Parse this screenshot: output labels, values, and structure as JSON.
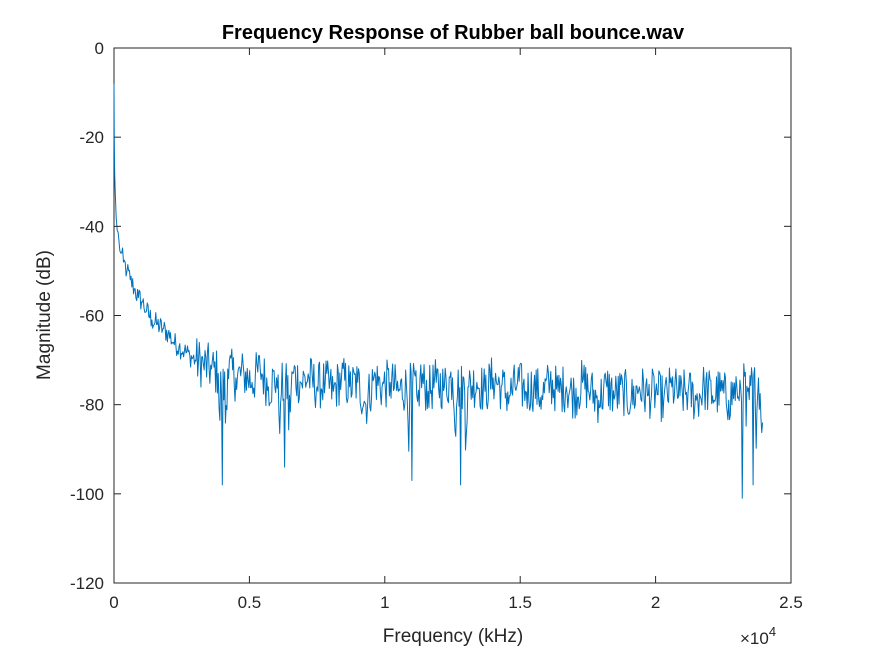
{
  "chart_data": {
    "type": "line",
    "title": "Frequency Response of Rubber ball bounce.wav",
    "xlabel": "Frequency (kHz)",
    "ylabel": "Magnitude (dB)",
    "xlim": [
      0,
      25000
    ],
    "ylim": [
      -120,
      0
    ],
    "x_ticks": [
      0,
      5000,
      10000,
      15000,
      20000,
      25000
    ],
    "x_tick_labels": [
      "0",
      "0.5",
      "1",
      "1.5",
      "2",
      "2.5"
    ],
    "x_exponent_label": "×10",
    "x_exponent_power": "4",
    "y_ticks": [
      0,
      -20,
      -40,
      -60,
      -80,
      -100,
      -120
    ],
    "y_tick_labels": [
      "0",
      "-20",
      "-40",
      "-60",
      "-80",
      "-100",
      "-120"
    ],
    "grid": false,
    "series_color": "#0072BD",
    "series": [
      {
        "x": [
          0,
          10,
          25,
          50,
          80,
          120,
          180,
          250,
          350,
          480,
          600,
          750,
          900,
          1050,
          1200,
          1400,
          1600,
          1800,
          2000,
          2200,
          2400,
          2600,
          2800,
          3000,
          3300,
          3600,
          3850,
          4000,
          4200,
          4500,
          4800,
          5100,
          5400,
          5700,
          6000,
          6300,
          6600,
          6900,
          7200,
          7500,
          7800,
          8100,
          8400,
          8700,
          9000,
          9300,
          9600,
          9900,
          10200,
          10500,
          10800,
          11000,
          11300,
          11600,
          11900,
          12200,
          12500,
          12800,
          13100,
          13400,
          13700,
          14000,
          14300,
          14600,
          14900,
          15200,
          15500,
          15800,
          16100,
          16400,
          16700,
          17000,
          17300,
          17600,
          17900,
          18200,
          18500,
          18800,
          19100,
          19400,
          19700,
          20000,
          20300,
          20600,
          20900,
          21200,
          21500,
          21800,
          22100,
          22400,
          22700,
          23000,
          23200,
          23400,
          23600,
          23800,
          23950
        ],
        "y": [
          -8,
          -20,
          -28,
          -33,
          -38,
          -41,
          -43,
          -46,
          -48,
          -50,
          -52,
          -54,
          -56,
          -57,
          -59,
          -61,
          -62,
          -63,
          -64,
          -66,
          -67,
          -68,
          -69,
          -70,
          -71,
          -72,
          -73,
          -98,
          -72,
          -74,
          -73,
          -75,
          -72,
          -76,
          -74,
          -94,
          -73,
          -75,
          -74,
          -76,
          -75,
          -77,
          -74,
          -76,
          -75,
          -80,
          -74,
          -76,
          -75,
          -77,
          -76,
          -97,
          -74,
          -77,
          -75,
          -76,
          -74,
          -98,
          -76,
          -75,
          -77,
          -74,
          -76,
          -78,
          -75,
          -77,
          -76,
          -78,
          -75,
          -77,
          -76,
          -78,
          -75,
          -77,
          -79,
          -76,
          -78,
          -77,
          -79,
          -76,
          -78,
          -77,
          -79,
          -76,
          -78,
          -77,
          -79,
          -76,
          -78,
          -77,
          -79,
          -76,
          -101,
          -77,
          -98,
          -74,
          -84
        ]
      }
    ]
  }
}
